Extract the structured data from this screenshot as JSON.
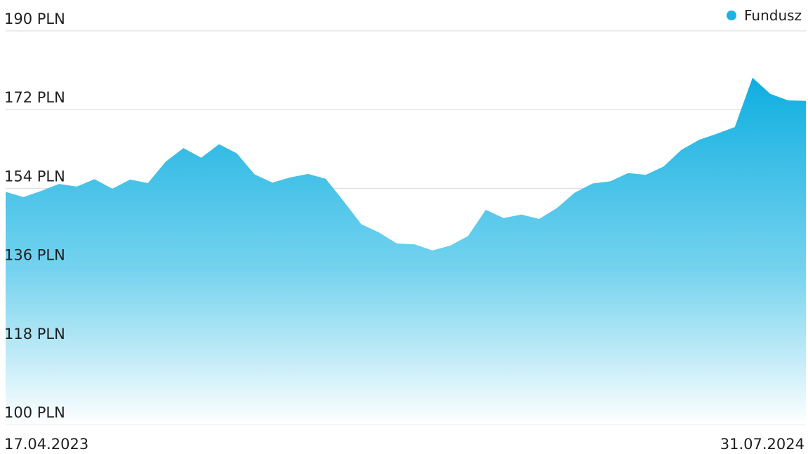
{
  "chart_data": {
    "type": "area",
    "title": "",
    "xlabel": "",
    "ylabel": "",
    "y_unit": "PLN",
    "ylim": [
      100,
      190
    ],
    "y_ticks": [
      {
        "value": 190,
        "label": "190 PLN"
      },
      {
        "value": 172,
        "label": "172 PLN"
      },
      {
        "value": 154,
        "label": "154 PLN"
      },
      {
        "value": 136,
        "label": "136 PLN"
      },
      {
        "value": 118,
        "label": "118 PLN"
      },
      {
        "value": 100,
        "label": "100 PLN"
      }
    ],
    "x_start_label": "17.04.2023",
    "x_end_label": "31.07.2024",
    "grid": true,
    "legend_position": "top-right",
    "series": [
      {
        "name": "Fundusz",
        "color": "#1ab3e3",
        "x": [
          "17.04.2023",
          "27.04.2023",
          "08.05.2023",
          "18.05.2023",
          "29.05.2023",
          "08.06.2023",
          "19.06.2023",
          "29.06.2023",
          "10.07.2023",
          "20.07.2023",
          "31.07.2023",
          "10.08.2023",
          "21.08.2023",
          "31.08.2023",
          "11.09.2023",
          "21.09.2023",
          "02.10.2023",
          "12.10.2023",
          "23.10.2023",
          "02.11.2023",
          "13.11.2023",
          "23.11.2023",
          "04.12.2023",
          "14.12.2023",
          "25.12.2023",
          "04.01.2024",
          "15.01.2024",
          "25.01.2024",
          "05.02.2024",
          "15.02.2024",
          "26.02.2024",
          "07.03.2024",
          "18.03.2024",
          "28.03.2024",
          "08.04.2024",
          "18.04.2024",
          "29.04.2024",
          "09.05.2024",
          "20.05.2024",
          "30.05.2024",
          "10.06.2024",
          "20.06.2024",
          "01.07.2024",
          "11.07.2024",
          "22.07.2024",
          "31.07.2024"
        ],
        "values": [
          153.2,
          152.0,
          153.4,
          155.0,
          154.4,
          156.1,
          153.9,
          156.0,
          155.2,
          160.1,
          163.2,
          161.0,
          164.1,
          162.0,
          157.2,
          155.3,
          156.5,
          157.3,
          156.2,
          151.1,
          145.8,
          143.9,
          141.4,
          141.2,
          139.8,
          140.9,
          143.1,
          149.1,
          147.2,
          148.0,
          147.0,
          149.5,
          153.0,
          155.1,
          155.6,
          157.5,
          157.1,
          159.0,
          162.8,
          165.1,
          166.5,
          168.0,
          179.3,
          175.6,
          174.1,
          174.0
        ]
      }
    ]
  }
}
